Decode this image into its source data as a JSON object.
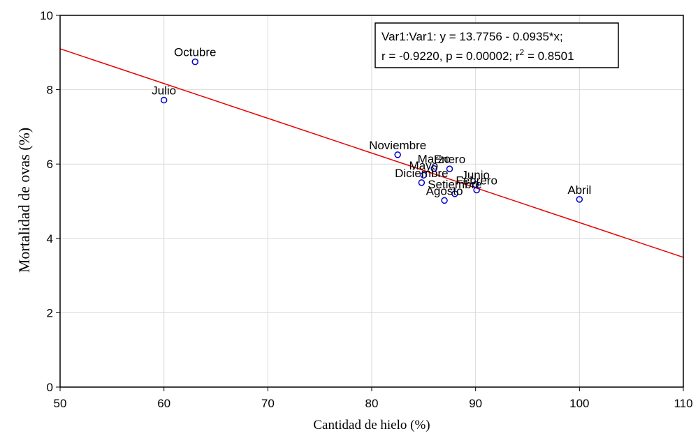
{
  "chart_data": {
    "type": "scatter",
    "xlabel": "Cantidad de hielo (%)",
    "ylabel": "Mortalidad de ovas (%)",
    "xlim": [
      50,
      110
    ],
    "ylim": [
      0,
      10
    ],
    "xticks": [
      50,
      60,
      70,
      80,
      90,
      100,
      110
    ],
    "yticks": [
      0,
      2,
      4,
      6,
      8,
      10
    ],
    "grid": true,
    "points": [
      {
        "label": "Octubre",
        "x": 63,
        "y": 8.75
      },
      {
        "label": "Julio",
        "x": 60,
        "y": 7.72
      },
      {
        "label": "Noviembre",
        "x": 82.5,
        "y": 6.25
      },
      {
        "label": "Mayo",
        "x": 85,
        "y": 5.7
      },
      {
        "label": "Marzo",
        "x": 86,
        "y": 5.88
      },
      {
        "label": "Enero",
        "x": 87.5,
        "y": 5.87
      },
      {
        "label": "Diciembre",
        "x": 84.8,
        "y": 5.5
      },
      {
        "label": "Junio",
        "x": 90,
        "y": 5.45
      },
      {
        "label": "Febrero",
        "x": 90.1,
        "y": 5.3
      },
      {
        "label": "Agosto",
        "x": 87,
        "y": 5.02
      },
      {
        "label": "Setiembre",
        "x": 88,
        "y": 5.2
      },
      {
        "label": "Abril",
        "x": 100,
        "y": 5.05
      }
    ],
    "regression": {
      "intercept": 13.7756,
      "slope": -0.0935
    },
    "point_color": "#0000cc",
    "line_color": "#e60000",
    "legend": {
      "line1": "Var1:Var1:   y = 13.7756 - 0.0935*x;",
      "line2_prefix": "r = -0.9220, p = 0.00002; r",
      "line2_sup": "2",
      "line2_suffix": " = 0.8501",
      "position": "top-right"
    }
  }
}
